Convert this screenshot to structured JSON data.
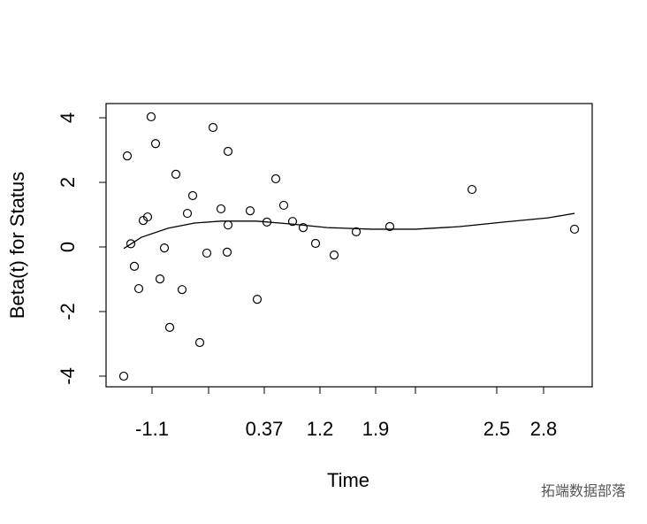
{
  "chart_data": {
    "type": "scatter",
    "xlabel": "Time",
    "ylabel": "Beta(t) for Status",
    "xlim": [
      0,
      55
    ],
    "ylim": [
      -4.33,
      4.44
    ],
    "xticks": [
      {
        "value": 5.2,
        "label": "-1.1"
      },
      {
        "value": 11.6,
        "label": null
      },
      {
        "value": 17.9,
        "label": "0.37"
      },
      {
        "value": 24.2,
        "label": "1.2"
      },
      {
        "value": 30.5,
        "label": "1.9"
      },
      {
        "value": 35,
        "label": null
      },
      {
        "value": 44.2,
        "label": "2.5"
      },
      {
        "value": 49.5,
        "label": "2.8"
      }
    ],
    "yticks": [
      -4,
      -2,
      0,
      2,
      4
    ],
    "color": "#000000",
    "points": {
      "x": [
        2.0,
        2.4,
        2.8,
        3.2,
        3.7,
        4.2,
        4.7,
        5.1,
        5.6,
        6.1,
        6.6,
        7.2,
        7.9,
        8.6,
        9.2,
        9.8,
        10.6,
        11.4,
        12.1,
        13.0,
        13.7,
        13.8,
        13.8,
        16.3,
        17.1,
        18.2,
        19.2,
        20.1,
        21.1,
        22.3,
        23.7,
        25.8,
        28.3,
        32.1,
        41.4,
        53.0
      ],
      "y": [
        -4.0,
        2.82,
        0.1,
        -0.6,
        -1.29,
        0.82,
        0.93,
        4.03,
        3.2,
        -0.99,
        -0.03,
        -2.49,
        2.25,
        -1.32,
        1.04,
        1.59,
        -2.96,
        -0.19,
        3.7,
        1.18,
        -0.16,
        2.96,
        0.68,
        1.12,
        -1.62,
        0.77,
        2.11,
        1.29,
        0.79,
        0.6,
        0.11,
        -0.25,
        0.47,
        0.63,
        1.78,
        0.55
      ]
    },
    "line": {
      "x": [
        2,
        4,
        7,
        10,
        13,
        17,
        21,
        25,
        30,
        35,
        40,
        45,
        50,
        53
      ],
      "y": [
        -0.05,
        0.3,
        0.58,
        0.74,
        0.8,
        0.8,
        0.71,
        0.6,
        0.55,
        0.55,
        0.63,
        0.77,
        0.9,
        1.04
      ]
    }
  },
  "watermark": "拓端数据部落"
}
